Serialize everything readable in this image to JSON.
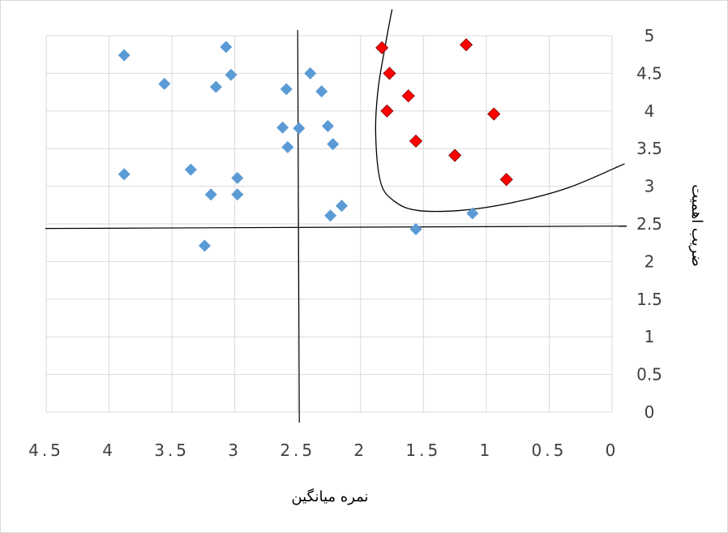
{
  "chart_data": {
    "type": "scatter",
    "xlabel": "نمره میانگین",
    "ylabel": "ضریب اهمیت",
    "x_axis_reversed": true,
    "xlim": [
      0,
      4.5
    ],
    "ylim": [
      0,
      5
    ],
    "x_major_unit": 0.5,
    "y_major_unit": 0.5,
    "x_tick_labels": [
      "4.5",
      "4",
      "3.5",
      "3",
      "2.5",
      "2",
      "1.5",
      "1",
      "0.5",
      "0"
    ],
    "y_tick_labels": [
      "5",
      "4.5",
      "4",
      "3.5",
      "3",
      "2.5",
      "2",
      "1.5",
      "1",
      "0.5",
      "0"
    ],
    "y_axis_position": "right",
    "grid": true,
    "marker": "diamond",
    "reference_lines": {
      "x": 2.5,
      "y": 2.45
    },
    "series": [
      {
        "color": "#5b9bd5",
        "points": [
          {
            "x": 3.88,
            "y": 4.74
          },
          {
            "x": 3.07,
            "y": 4.85
          },
          {
            "x": 3.56,
            "y": 4.36
          },
          {
            "x": 3.15,
            "y": 4.32
          },
          {
            "x": 3.03,
            "y": 4.48
          },
          {
            "x": 2.4,
            "y": 4.5
          },
          {
            "x": 2.59,
            "y": 4.29
          },
          {
            "x": 2.31,
            "y": 4.26
          },
          {
            "x": 2.62,
            "y": 3.78
          },
          {
            "x": 2.49,
            "y": 3.77
          },
          {
            "x": 2.26,
            "y": 3.8
          },
          {
            "x": 2.58,
            "y": 3.52
          },
          {
            "x": 2.22,
            "y": 3.56
          },
          {
            "x": 3.88,
            "y": 3.16
          },
          {
            "x": 3.35,
            "y": 3.22
          },
          {
            "x": 2.98,
            "y": 3.11
          },
          {
            "x": 3.19,
            "y": 2.89
          },
          {
            "x": 2.98,
            "y": 2.89
          },
          {
            "x": 2.15,
            "y": 2.74
          },
          {
            "x": 2.24,
            "y": 2.61
          },
          {
            "x": 1.11,
            "y": 2.64
          },
          {
            "x": 1.56,
            "y": 2.43
          },
          {
            "x": 3.24,
            "y": 2.21
          }
        ]
      },
      {
        "color": "#ff0000",
        "points": [
          {
            "x": 1.83,
            "y": 4.84
          },
          {
            "x": 1.16,
            "y": 4.88
          },
          {
            "x": 1.77,
            "y": 4.5
          },
          {
            "x": 1.62,
            "y": 4.2
          },
          {
            "x": 1.79,
            "y": 4.0
          },
          {
            "x": 0.94,
            "y": 3.96
          },
          {
            "x": 1.56,
            "y": 3.6
          },
          {
            "x": 1.25,
            "y": 3.41
          },
          {
            "x": 0.84,
            "y": 3.09
          }
        ]
      }
    ],
    "highlight_curve": [
      [
        1.75,
        5.35
      ],
      [
        1.8,
        4.9
      ],
      [
        1.86,
        4.3
      ],
      [
        1.88,
        3.7
      ],
      [
        1.84,
        3.05
      ],
      [
        1.73,
        2.8
      ],
      [
        1.55,
        2.68
      ],
      [
        1.2,
        2.68
      ],
      [
        0.8,
        2.78
      ],
      [
        0.35,
        2.98
      ],
      [
        -0.1,
        3.3
      ]
    ]
  }
}
